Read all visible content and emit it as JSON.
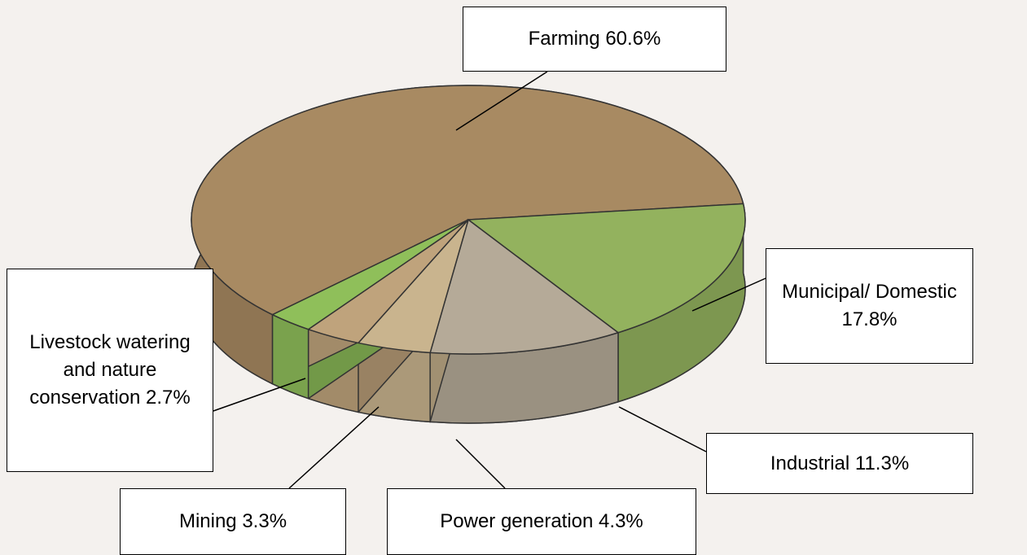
{
  "chart_data": {
    "type": "pie",
    "categories": [
      "Farming",
      "Municipal/ Domestic",
      "Industrial",
      "Power generation",
      "Mining",
      "Livestock watering and nature conservation"
    ],
    "values": [
      60.6,
      17.8,
      11.3,
      4.3,
      3.3,
      2.7
    ],
    "value_labels": [
      "60.6%",
      "17.8%",
      "11.3%",
      "4.3%",
      "3.3%",
      "2.7%"
    ],
    "colors": [
      "#a88a62",
      "#93b25e",
      "#b5aa98",
      "#c9b48e",
      "#bfa37c",
      "#8fbf5a"
    ]
  }
}
